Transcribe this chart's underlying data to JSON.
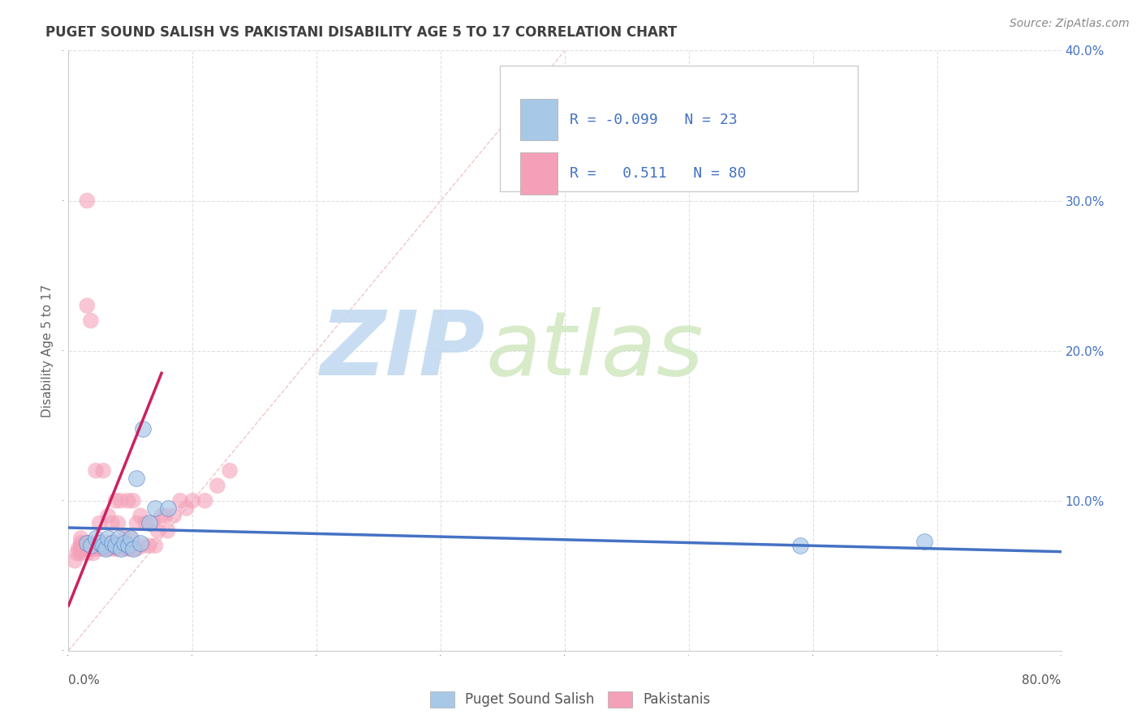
{
  "title": "PUGET SOUND SALISH VS PAKISTANI DISABILITY AGE 5 TO 17 CORRELATION CHART",
  "source_text": "Source: ZipAtlas.com",
  "ylabel": "Disability Age 5 to 17",
  "xlim": [
    0.0,
    0.8
  ],
  "ylim": [
    0.0,
    0.4
  ],
  "xticks": [
    0.0,
    0.1,
    0.2,
    0.3,
    0.4,
    0.5,
    0.6,
    0.7,
    0.8
  ],
  "yticks_right": [
    0.0,
    0.1,
    0.2,
    0.3,
    0.4
  ],
  "ytick_labels_right": [
    "",
    "10.0%",
    "20.0%",
    "30.0%",
    "40.0%"
  ],
  "xtick_labels_show": [
    "0.0%",
    "",
    "",
    "",
    "",
    "",
    "",
    "",
    "80.0%"
  ],
  "legend_R1": "-0.099",
  "legend_N1": "23",
  "legend_R2": "0.511",
  "legend_N2": "80",
  "color_salish": "#a8c8e8",
  "color_pakistani": "#f4a0b8",
  "color_line_salish": "#4472c4",
  "color_line_pakistani": "#cc2060",
  "color_title": "#404040",
  "color_legend_text": "#4472c4",
  "color_source": "#888888",
  "watermark_zip": "ZIP",
  "watermark_atlas": "atlas",
  "watermark_color_zip": "#c0d8f0",
  "watermark_color_atlas": "#d0e8c0",
  "background_color": "#ffffff",
  "grid_color": "#e0e0e0",
  "diag_color": "#f0c0c0",
  "salish_x": [
    0.015,
    0.018,
    0.022,
    0.025,
    0.028,
    0.03,
    0.032,
    0.035,
    0.038,
    0.04,
    0.042,
    0.045,
    0.048,
    0.05,
    0.052,
    0.055,
    0.058,
    0.06,
    0.065,
    0.07,
    0.08,
    0.59,
    0.69
  ],
  "salish_y": [
    0.072,
    0.07,
    0.075,
    0.072,
    0.07,
    0.068,
    0.075,
    0.072,
    0.07,
    0.075,
    0.068,
    0.072,
    0.07,
    0.075,
    0.068,
    0.115,
    0.072,
    0.148,
    0.085,
    0.095,
    0.095,
    0.07,
    0.073
  ],
  "pakistani_x": [
    0.005,
    0.007,
    0.008,
    0.01,
    0.01,
    0.01,
    0.01,
    0.01,
    0.012,
    0.012,
    0.013,
    0.015,
    0.015,
    0.015,
    0.015,
    0.015,
    0.015,
    0.015,
    0.018,
    0.018,
    0.018,
    0.018,
    0.018,
    0.02,
    0.02,
    0.02,
    0.022,
    0.022,
    0.022,
    0.025,
    0.025,
    0.025,
    0.025,
    0.028,
    0.028,
    0.028,
    0.03,
    0.03,
    0.03,
    0.032,
    0.032,
    0.035,
    0.035,
    0.035,
    0.035,
    0.038,
    0.038,
    0.04,
    0.04,
    0.04,
    0.042,
    0.042,
    0.045,
    0.045,
    0.045,
    0.048,
    0.048,
    0.05,
    0.05,
    0.052,
    0.052,
    0.055,
    0.055,
    0.058,
    0.06,
    0.062,
    0.065,
    0.068,
    0.07,
    0.072,
    0.075,
    0.078,
    0.08,
    0.085,
    0.09,
    0.095,
    0.1,
    0.11,
    0.12,
    0.13
  ],
  "pakistani_y": [
    0.06,
    0.065,
    0.068,
    0.065,
    0.068,
    0.07,
    0.072,
    0.075,
    0.068,
    0.07,
    0.068,
    0.065,
    0.068,
    0.07,
    0.072,
    0.068,
    0.23,
    0.3,
    0.068,
    0.07,
    0.22,
    0.068,
    0.072,
    0.065,
    0.068,
    0.07,
    0.068,
    0.07,
    0.12,
    0.068,
    0.07,
    0.072,
    0.085,
    0.068,
    0.07,
    0.12,
    0.068,
    0.07,
    0.072,
    0.068,
    0.09,
    0.068,
    0.07,
    0.072,
    0.085,
    0.068,
    0.1,
    0.068,
    0.07,
    0.085,
    0.068,
    0.1,
    0.068,
    0.07,
    0.075,
    0.068,
    0.1,
    0.068,
    0.075,
    0.068,
    0.1,
    0.068,
    0.085,
    0.09,
    0.07,
    0.085,
    0.07,
    0.085,
    0.07,
    0.08,
    0.09,
    0.09,
    0.08,
    0.09,
    0.1,
    0.095,
    0.1,
    0.1,
    0.11,
    0.12
  ],
  "salish_trend_x": [
    0.0,
    0.8
  ],
  "salish_trend_y": [
    0.082,
    0.066
  ],
  "pakistani_trend_x": [
    0.0,
    0.075
  ],
  "pakistani_trend_y": [
    0.03,
    0.185
  ]
}
